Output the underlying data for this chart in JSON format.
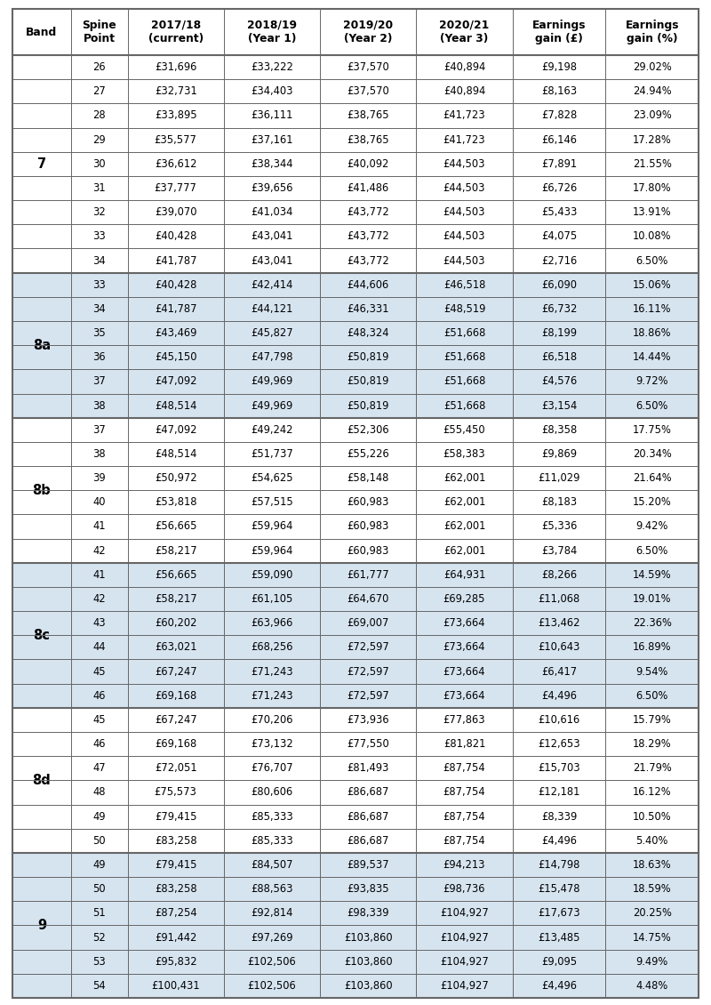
{
  "headers": [
    "Band",
    "Spine\nPoint",
    "2017/18\n(current)",
    "2018/19\n(Year 1)",
    "2019/20\n(Year 2)",
    "2020/21\n(Year 3)",
    "Earnings\ngain (£)",
    "Earnings\ngain (%)"
  ],
  "rows": [
    [
      "7",
      "26",
      "£31,696",
      "£33,222",
      "£37,570",
      "£40,894",
      "£9,198",
      "29.02%"
    ],
    [
      "7",
      "27",
      "£32,731",
      "£34,403",
      "£37,570",
      "£40,894",
      "£8,163",
      "24.94%"
    ],
    [
      "7",
      "28",
      "£33,895",
      "£36,111",
      "£38,765",
      "£41,723",
      "£7,828",
      "23.09%"
    ],
    [
      "7",
      "29",
      "£35,577",
      "£37,161",
      "£38,765",
      "£41,723",
      "£6,146",
      "17.28%"
    ],
    [
      "7",
      "30",
      "£36,612",
      "£38,344",
      "£40,092",
      "£44,503",
      "£7,891",
      "21.55%"
    ],
    [
      "7",
      "31",
      "£37,777",
      "£39,656",
      "£41,486",
      "£44,503",
      "£6,726",
      "17.80%"
    ],
    [
      "7",
      "32",
      "£39,070",
      "£41,034",
      "£43,772",
      "£44,503",
      "£5,433",
      "13.91%"
    ],
    [
      "7",
      "33",
      "£40,428",
      "£43,041",
      "£43,772",
      "£44,503",
      "£4,075",
      "10.08%"
    ],
    [
      "7",
      "34",
      "£41,787",
      "£43,041",
      "£43,772",
      "£44,503",
      "£2,716",
      "6.50%"
    ],
    [
      "8a",
      "33",
      "£40,428",
      "£42,414",
      "£44,606",
      "£46,518",
      "£6,090",
      "15.06%"
    ],
    [
      "8a",
      "34",
      "£41,787",
      "£44,121",
      "£46,331",
      "£48,519",
      "£6,732",
      "16.11%"
    ],
    [
      "8a",
      "35",
      "£43,469",
      "£45,827",
      "£48,324",
      "£51,668",
      "£8,199",
      "18.86%"
    ],
    [
      "8a",
      "36",
      "£45,150",
      "£47,798",
      "£50,819",
      "£51,668",
      "£6,518",
      "14.44%"
    ],
    [
      "8a",
      "37",
      "£47,092",
      "£49,969",
      "£50,819",
      "£51,668",
      "£4,576",
      "9.72%"
    ],
    [
      "8a",
      "38",
      "£48,514",
      "£49,969",
      "£50,819",
      "£51,668",
      "£3,154",
      "6.50%"
    ],
    [
      "8b",
      "37",
      "£47,092",
      "£49,242",
      "£52,306",
      "£55,450",
      "£8,358",
      "17.75%"
    ],
    [
      "8b",
      "38",
      "£48,514",
      "£51,737",
      "£55,226",
      "£58,383",
      "£9,869",
      "20.34%"
    ],
    [
      "8b",
      "39",
      "£50,972",
      "£54,625",
      "£58,148",
      "£62,001",
      "£11,029",
      "21.64%"
    ],
    [
      "8b",
      "40",
      "£53,818",
      "£57,515",
      "£60,983",
      "£62,001",
      "£8,183",
      "15.20%"
    ],
    [
      "8b",
      "41",
      "£56,665",
      "£59,964",
      "£60,983",
      "£62,001",
      "£5,336",
      "9.42%"
    ],
    [
      "8b",
      "42",
      "£58,217",
      "£59,964",
      "£60,983",
      "£62,001",
      "£3,784",
      "6.50%"
    ],
    [
      "8c",
      "41",
      "£56,665",
      "£59,090",
      "£61,777",
      "£64,931",
      "£8,266",
      "14.59%"
    ],
    [
      "8c",
      "42",
      "£58,217",
      "£61,105",
      "£64,670",
      "£69,285",
      "£11,068",
      "19.01%"
    ],
    [
      "8c",
      "43",
      "£60,202",
      "£63,966",
      "£69,007",
      "£73,664",
      "£13,462",
      "22.36%"
    ],
    [
      "8c",
      "44",
      "£63,021",
      "£68,256",
      "£72,597",
      "£73,664",
      "£10,643",
      "16.89%"
    ],
    [
      "8c",
      "45",
      "£67,247",
      "£71,243",
      "£72,597",
      "£73,664",
      "£6,417",
      "9.54%"
    ],
    [
      "8c",
      "46",
      "£69,168",
      "£71,243",
      "£72,597",
      "£73,664",
      "£4,496",
      "6.50%"
    ],
    [
      "8d",
      "45",
      "£67,247",
      "£70,206",
      "£73,936",
      "£77,863",
      "£10,616",
      "15.79%"
    ],
    [
      "8d",
      "46",
      "£69,168",
      "£73,132",
      "£77,550",
      "£81,821",
      "£12,653",
      "18.29%"
    ],
    [
      "8d",
      "47",
      "£72,051",
      "£76,707",
      "£81,493",
      "£87,754",
      "£15,703",
      "21.79%"
    ],
    [
      "8d",
      "48",
      "£75,573",
      "£80,606",
      "£86,687",
      "£87,754",
      "£12,181",
      "16.12%"
    ],
    [
      "8d",
      "49",
      "£79,415",
      "£85,333",
      "£86,687",
      "£87,754",
      "£8,339",
      "10.50%"
    ],
    [
      "8d",
      "50",
      "£83,258",
      "£85,333",
      "£86,687",
      "£87,754",
      "£4,496",
      "5.40%"
    ],
    [
      "9",
      "49",
      "£79,415",
      "£84,507",
      "£89,537",
      "£94,213",
      "£14,798",
      "18.63%"
    ],
    [
      "9",
      "50",
      "£83,258",
      "£88,563",
      "£93,835",
      "£98,736",
      "£15,478",
      "18.59%"
    ],
    [
      "9",
      "51",
      "£87,254",
      "£92,814",
      "£98,339",
      "£104,927",
      "£17,673",
      "20.25%"
    ],
    [
      "9",
      "52",
      "£91,442",
      "£97,269",
      "£103,860",
      "£104,927",
      "£13,485",
      "14.75%"
    ],
    [
      "9",
      "53",
      "£95,832",
      "£102,506",
      "£103,860",
      "£104,927",
      "£9,095",
      "9.49%"
    ],
    [
      "9",
      "54",
      "£100,431",
      "£102,506",
      "£103,860",
      "£104,927",
      "£4,496",
      "4.48%"
    ]
  ],
  "band_color_map": {
    "7": "#ffffff",
    "8a": "#d6e4f0",
    "8b": "#ffffff",
    "8c": "#d6e4f0",
    "8d": "#ffffff",
    "9": "#d6e4f0"
  },
  "border_color": "#666666",
  "col_props": [
    0.074,
    0.072,
    0.122,
    0.122,
    0.122,
    0.122,
    0.118,
    0.118
  ],
  "header_fontsize": 8.8,
  "data_fontsize": 8.3,
  "band_fontsize": 10.5
}
